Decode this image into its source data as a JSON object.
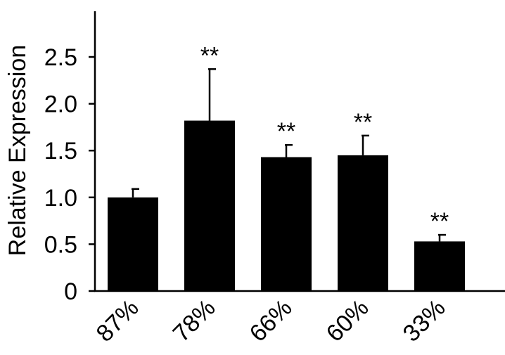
{
  "chart_data": {
    "type": "bar",
    "title": "",
    "xlabel": "",
    "ylabel": "Relative Expression",
    "categories": [
      "87%",
      "78%",
      "66%",
      "60%",
      "33%"
    ],
    "values": [
      1.0,
      1.82,
      1.43,
      1.45,
      0.53
    ],
    "error_upper": [
      0.09,
      0.55,
      0.13,
      0.21,
      0.07
    ],
    "significance": [
      "",
      "**",
      "**",
      "**",
      "**"
    ],
    "ylim": [
      0,
      3.0
    ],
    "yticks": [
      0,
      0.5,
      1.0,
      1.5,
      2.0,
      2.5
    ],
    "ytick_labels": [
      "0",
      "0.5",
      "1.0",
      "1.5",
      "2.0",
      "2.5"
    ],
    "grid": false,
    "bar_color": "#000000",
    "legend": "none"
  }
}
